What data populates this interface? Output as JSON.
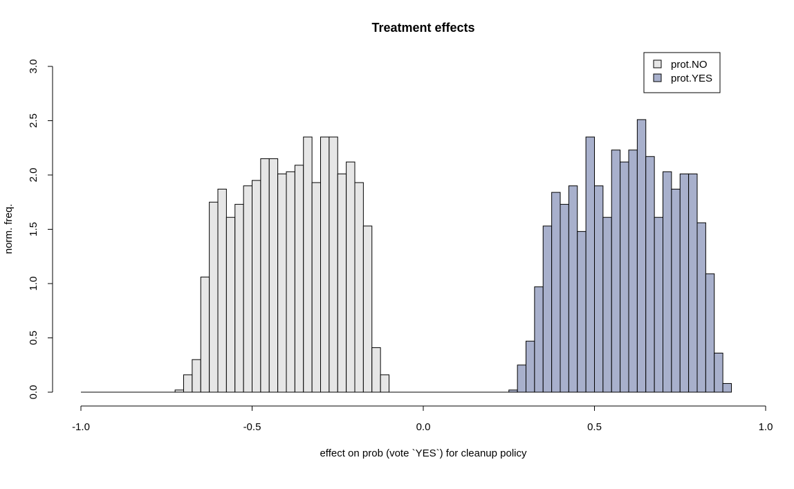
{
  "chart_data": {
    "type": "bar",
    "title": "Treatment effects",
    "xlabel": "effect on prob (vote `YES`) for cleanup policy",
    "ylabel": "norm. freq.",
    "xlim": [
      -1.0,
      1.0
    ],
    "ylim": [
      0.0,
      3.0
    ],
    "x_ticks": [
      "-1.0",
      "-0.5",
      "0.0",
      "0.5",
      "1.0"
    ],
    "y_ticks": [
      "0.0",
      "0.5",
      "1.0",
      "1.5",
      "2.0",
      "2.5",
      "3.0"
    ],
    "bin_width": 0.025,
    "baseline_range": [
      -1.0,
      0.9
    ],
    "legend_position": "top-right",
    "grid": false,
    "series": [
      {
        "name": "prot.NO",
        "color": "#e6e6e6",
        "bin_start": -0.725,
        "values": [
          0.02,
          0.16,
          0.3,
          1.06,
          1.75,
          1.87,
          1.61,
          1.73,
          1.9,
          1.95,
          2.15,
          2.15,
          2.01,
          2.03,
          2.09,
          2.35,
          1.93,
          2.35,
          2.35,
          2.01,
          2.12,
          1.93,
          1.53,
          0.41,
          0.16
        ]
      },
      {
        "name": "prot.YES",
        "color": "#a8b0cc",
        "bin_start": 0.25,
        "values": [
          0.02,
          0.25,
          0.47,
          0.97,
          1.53,
          1.84,
          1.73,
          1.9,
          1.48,
          2.35,
          1.9,
          1.61,
          2.23,
          2.12,
          2.23,
          2.51,
          2.17,
          1.61,
          2.03,
          1.87,
          2.01,
          2.01,
          1.56,
          1.09,
          0.36,
          0.08
        ]
      }
    ]
  }
}
